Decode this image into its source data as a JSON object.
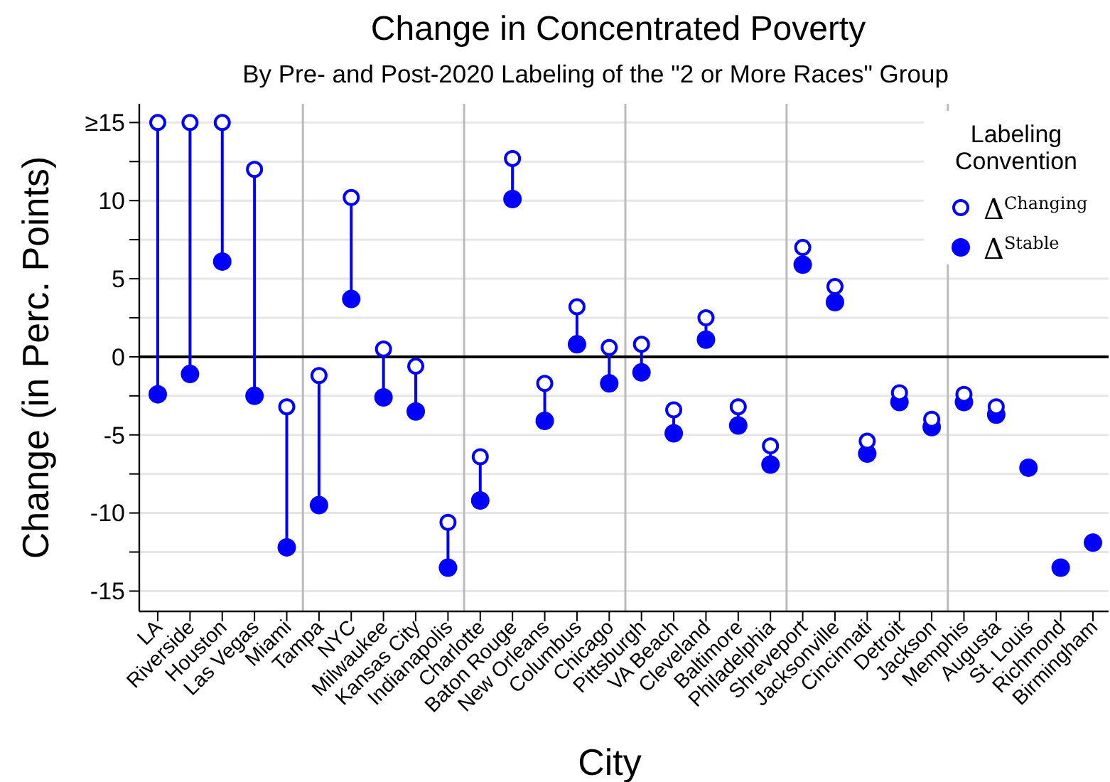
{
  "chart_data": {
    "type": "scatter",
    "title": "Change in Concentrated Poverty",
    "subtitle": "By Pre- and Post-2020 Labeling of the \"2 or More Races\" Group",
    "xlabel": "City",
    "ylabel": "Change (in Perc. Points)",
    "legend_title": "Labeling Convention",
    "categories": [
      "LA",
      "Riverside",
      "Houston",
      "Las Vegas",
      "Miami",
      "Tampa",
      "NYC",
      "Milwaukee",
      "Kansas City",
      "Indianapolis",
      "Charlotte",
      "Baton Rouge",
      "New Orleans",
      "Columbus",
      "Chicago",
      "Pittsburgh",
      "VA Beach",
      "Cleveland",
      "Baltimore",
      "Philadelphia",
      "Shreveport",
      "Jacksonville",
      "Cincinnati",
      "Detroit",
      "Jackson",
      "Memphis",
      "Augusta",
      "St. Louis",
      "Richmond",
      "Birmingham"
    ],
    "ylim": [
      -16.3,
      16.2
    ],
    "yticks": [
      -15,
      {
        "value": -12.5,
        "label": null
      },
      -10,
      {
        "value": -7.5,
        "label": null
      },
      -5,
      {
        "value": -2.5,
        "label": null
      },
      0,
      {
        "value": 2.5,
        "label": null
      },
      5,
      {
        "value": 7.5,
        "label": null
      },
      10,
      {
        "value": 12.5,
        "label": null
      },
      {
        "value": 15,
        "label": "≥15"
      }
    ],
    "grid": "y",
    "legend": "top right",
    "marker": "circle",
    "series": [
      {
        "name": "Δ$^{Changing}$",
        "color": "#0000ff",
        "values": [
          15,
          15,
          15,
          12.0,
          -3.2,
          -1.2,
          10.2,
          0.5,
          -0.6,
          -10.6,
          -6.4,
          12.7,
          -1.7,
          3.2,
          0.6,
          0.8,
          -3.4,
          2.5,
          -3.2,
          -5.7,
          7.0,
          4.5,
          -5.4,
          -2.3,
          -4.0,
          -2.4,
          -3.2,
          null,
          null,
          null
        ]
      },
      {
        "name": "Δ$^{Stable}$",
        "color": "#0000ff",
        "values": [
          -2.4,
          -1.1,
          6.1,
          -2.5,
          -12.2,
          -9.5,
          3.7,
          -2.6,
          -3.5,
          -13.5,
          -9.2,
          10.1,
          -4.1,
          0.8,
          -1.7,
          -1.0,
          -4.9,
          1.1,
          -4.4,
          -6.9,
          5.9,
          3.5,
          -6.2,
          -2.9,
          -4.5,
          -2.9,
          -3.7,
          -7.1,
          -13.5,
          -11.9
        ]
      }
    ],
    "ref_lines": [
      {
        "axis": "y",
        "value": 0,
        "color": "#000000"
      }
    ]
  }
}
